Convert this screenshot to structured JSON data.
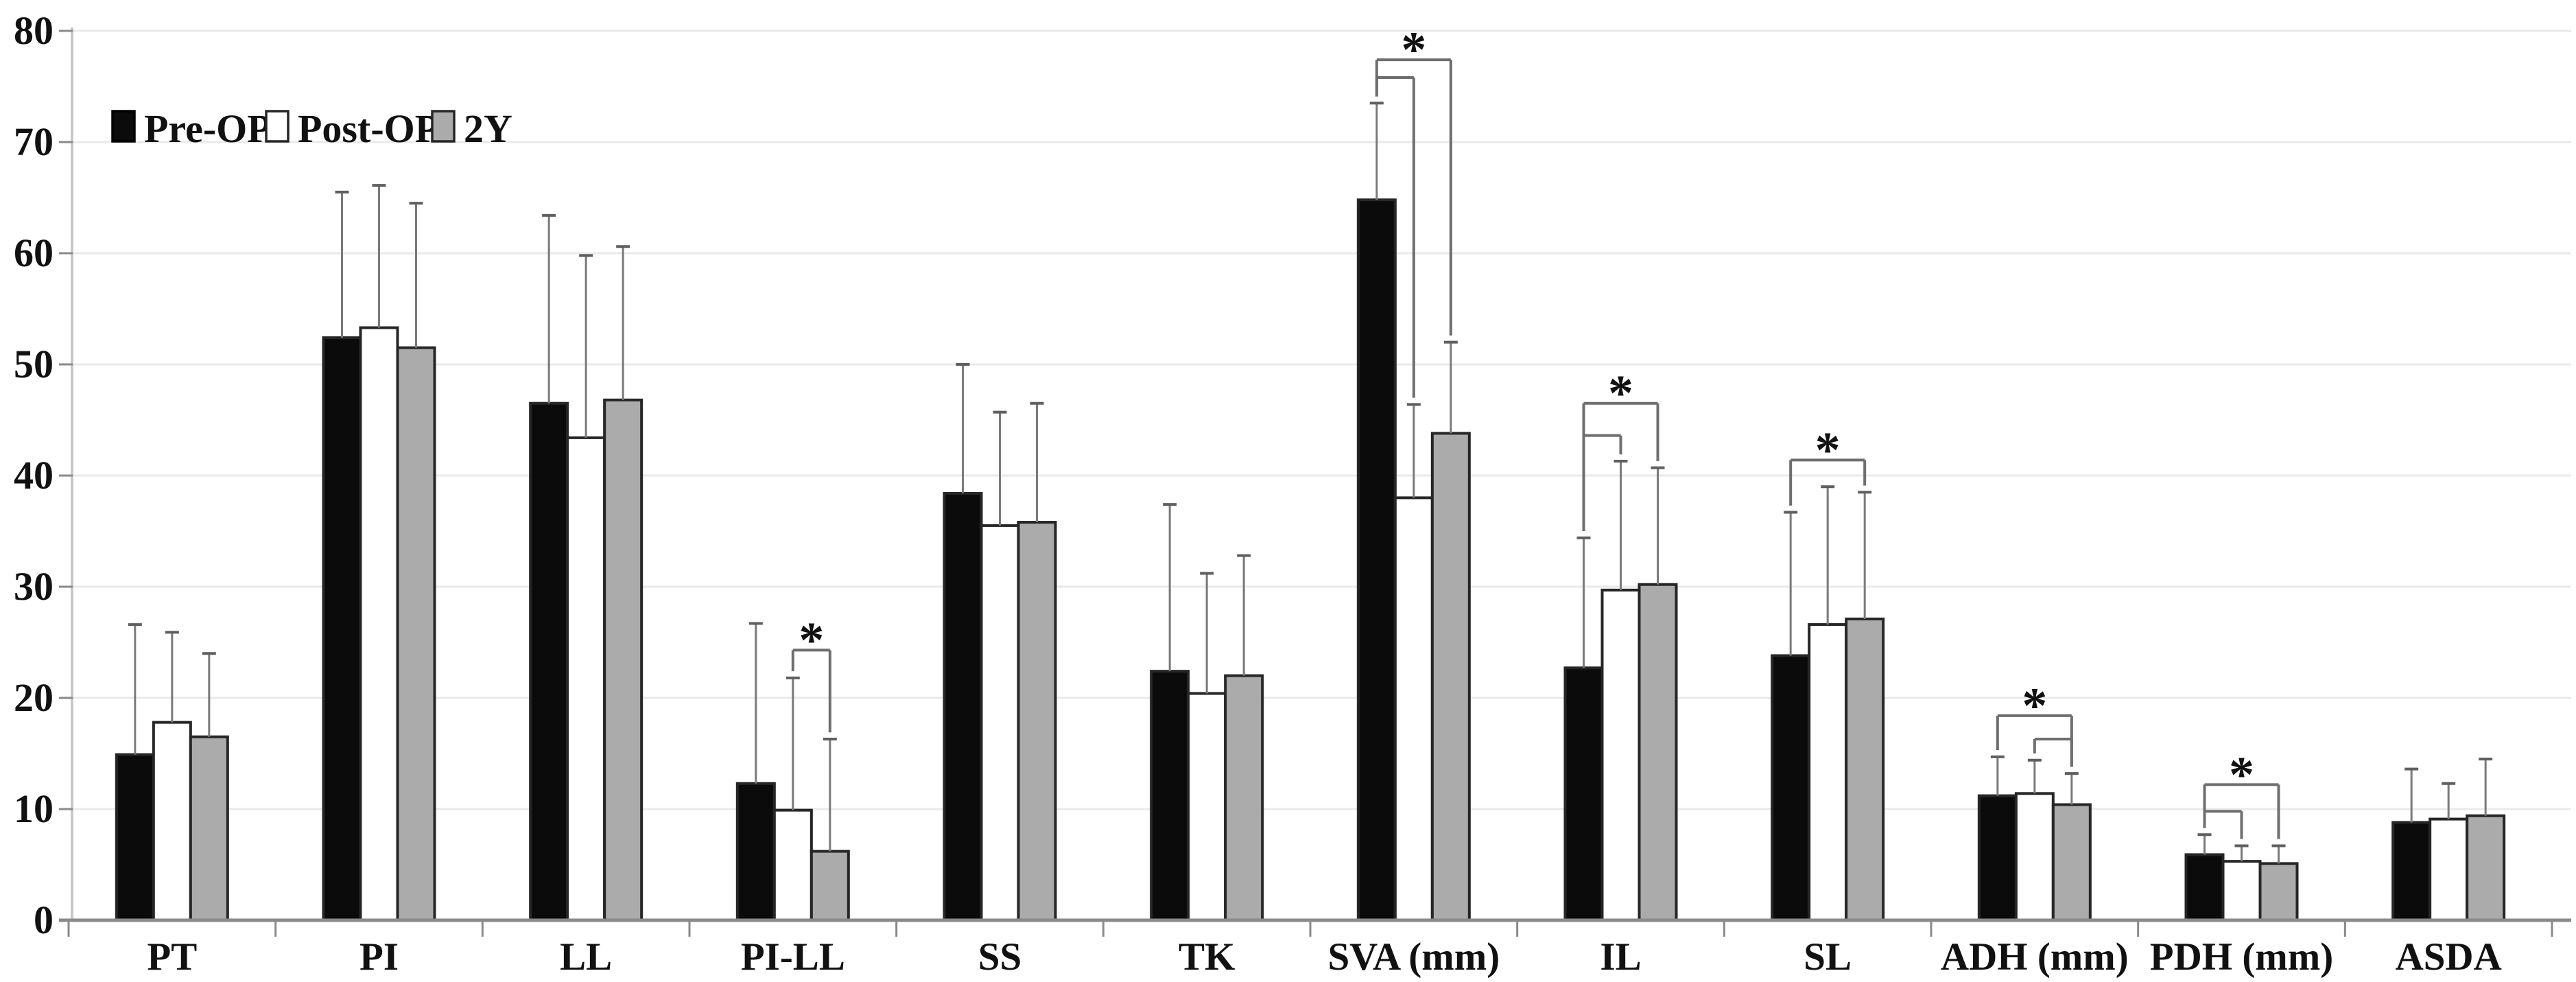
{
  "chart_data": {
    "type": "bar",
    "title": "",
    "xlabel": "",
    "ylabel": "",
    "ylim": [
      0,
      80
    ],
    "yticks": [
      0,
      10,
      20,
      30,
      40,
      50,
      60,
      70,
      80
    ],
    "grid": true,
    "legend_position": "top-left",
    "error_bars": "upper-only",
    "categories": [
      "PT",
      "PI",
      "LL",
      "PI-LL",
      "SS",
      "TK",
      "SVA (mm)",
      "IL",
      "SL",
      "ADH (mm)",
      "PDH (mm)",
      "ASDA"
    ],
    "series": [
      {
        "name": "Pre-OP",
        "fill": "#0b0b0b",
        "values": [
          14.9,
          52.4,
          46.5,
          12.3,
          38.4,
          22.4,
          64.8,
          22.7,
          23.8,
          11.2,
          5.9,
          8.8
        ],
        "errors_up": [
          11.7,
          13.1,
          16.9,
          14.4,
          11.6,
          15.0,
          8.7,
          11.7,
          12.9,
          3.5,
          1.8,
          4.8
        ]
      },
      {
        "name": "Post-OP",
        "fill": "#ffffff",
        "values": [
          17.8,
          53.3,
          43.4,
          9.9,
          35.5,
          20.4,
          38.0,
          29.7,
          26.6,
          11.4,
          5.3,
          9.1
        ],
        "errors_up": [
          8.1,
          12.8,
          16.4,
          11.9,
          10.2,
          10.8,
          8.4,
          11.6,
          12.4,
          3.0,
          1.4,
          3.2
        ]
      },
      {
        "name": "2Y",
        "fill": "#ababab",
        "values": [
          16.5,
          51.5,
          46.8,
          6.2,
          35.8,
          22.0,
          43.8,
          30.2,
          27.1,
          10.4,
          5.1,
          9.4
        ],
        "errors_up": [
          7.5,
          13.0,
          13.8,
          10.1,
          10.7,
          10.8,
          8.2,
          10.5,
          11.4,
          2.8,
          1.6,
          5.1
        ]
      }
    ],
    "significance_brackets": [
      {
        "category": "PI-LL",
        "between": [
          "Post-OP",
          "2Y"
        ],
        "y": 24.3,
        "label": "*"
      },
      {
        "category": "SVA (mm)",
        "between": [
          "Pre-OP",
          "2Y"
        ],
        "y": 77.4,
        "label": "*"
      },
      {
        "category": "SVA (mm)",
        "between": [
          "Pre-OP",
          "Post-OP"
        ],
        "y": 75.8,
        "label": ""
      },
      {
        "category": "IL",
        "between": [
          "Pre-OP",
          "2Y"
        ],
        "y": 46.5,
        "label": "*"
      },
      {
        "category": "IL",
        "between": [
          "Pre-OP",
          "Post-OP"
        ],
        "y": 43.6,
        "label": ""
      },
      {
        "category": "SL",
        "between": [
          "Pre-OP",
          "2Y"
        ],
        "y": 41.4,
        "label": "*"
      },
      {
        "category": "ADH (mm)",
        "between": [
          "Pre-OP",
          "2Y"
        ],
        "y": 18.4,
        "label": "*"
      },
      {
        "category": "ADH (mm)",
        "between": [
          "Post-OP",
          "2Y"
        ],
        "y": 16.3,
        "label": ""
      },
      {
        "category": "PDH (mm)",
        "between": [
          "Pre-OP",
          "2Y"
        ],
        "y": 12.2,
        "label": "*"
      },
      {
        "category": "PDH (mm)",
        "between": [
          "Pre-OP",
          "Post-OP"
        ],
        "y": 9.8,
        "label": ""
      }
    ],
    "colors": {
      "background": "#ffffff",
      "grid": "#eaeaea",
      "axis": "#8a8a8a",
      "axis_light": "#c8c8c8",
      "bar_stroke": "#262626",
      "error_bar": "#7a7a7a",
      "error_cap": "#5f5f5f",
      "bracket": "#6e6e6e",
      "star": "#3d3d3d",
      "text": "#111111"
    }
  }
}
